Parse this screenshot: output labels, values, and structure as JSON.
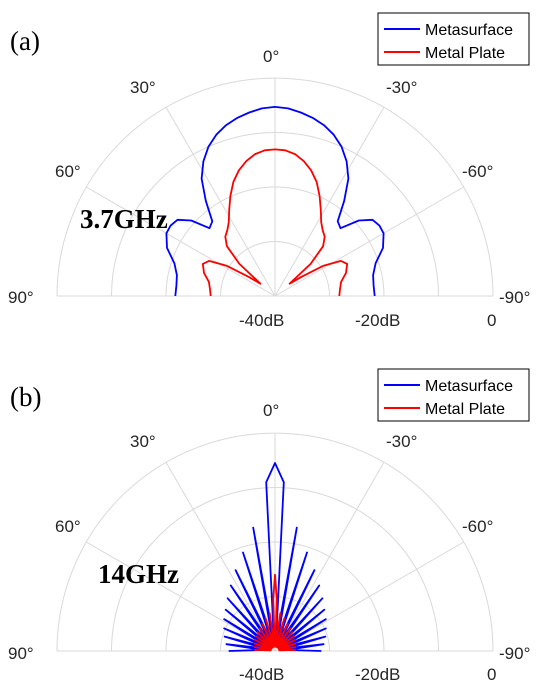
{
  "chart_data": [
    {
      "type": "polar-line",
      "panel_label": "(a)",
      "annotation": "3.7GHz",
      "legend": [
        "Metasurface",
        "Metal Plate"
      ],
      "angle_ticks": [
        "90°",
        "60°",
        "30°",
        "0°",
        "-30°",
        "-60°",
        "-90°"
      ],
      "radial_ticks": [
        "-40dB",
        "-20dB",
        "0"
      ],
      "radial_range_db": [
        -40,
        0
      ],
      "angle_range_deg": [
        -90,
        90
      ],
      "series": [
        {
          "name": "Metasurface",
          "color": "#0000ff",
          "angle_deg": [
            -90,
            -84,
            -78,
            -72,
            -66,
            -60,
            -56,
            -52,
            -48,
            -44,
            -40,
            -36,
            -32,
            -28,
            -24,
            -20,
            -16,
            -12,
            -8,
            -4,
            0,
            4,
            8,
            12,
            16,
            20,
            24,
            28,
            32,
            36,
            40,
            44,
            48,
            52,
            56,
            60,
            66,
            72,
            78,
            84,
            90
          ],
          "gain_db": [
            -21.7,
            -21.8,
            -21.6,
            -20.6,
            -18.3,
            -17.0,
            -16.9,
            -17.3,
            -19.3,
            -22.7,
            -22.1,
            -18.4,
            -14.6,
            -12.0,
            -10.0,
            -8.5,
            -7.4,
            -6.6,
            -6.0,
            -5.5,
            -5.3,
            -5.5,
            -6.0,
            -6.6,
            -7.4,
            -8.5,
            -10.0,
            -12.0,
            -14.6,
            -18.4,
            -22.1,
            -22.7,
            -19.3,
            -17.3,
            -16.9,
            -17.0,
            -18.3,
            -20.6,
            -21.6,
            -21.8,
            -21.7
          ]
        },
        {
          "name": "Metal Plate",
          "color": "#ff0000",
          "angle_deg": [
            -90,
            -84,
            -78,
            -72,
            -66,
            -62,
            -58,
            -54,
            -50,
            -48,
            -44,
            -40,
            -36,
            -32,
            -28,
            -24,
            -20,
            -16,
            -12,
            -8,
            -4,
            0,
            4,
            8,
            12,
            16,
            20,
            24,
            28,
            32,
            36,
            40,
            44,
            48,
            50,
            54,
            58,
            62,
            66,
            72,
            78,
            84,
            90
          ],
          "gain_db": [
            -28.2,
            -28.0,
            -27.6,
            -26.3,
            -25.5,
            -26.3,
            -29.5,
            -34.0,
            -36.5,
            -31.2,
            -27.3,
            -25.8,
            -25.1,
            -24.0,
            -22.1,
            -19.9,
            -17.7,
            -16.0,
            -14.7,
            -13.7,
            -13.2,
            -13.1,
            -13.2,
            -13.7,
            -14.7,
            -16.0,
            -17.7,
            -19.9,
            -22.1,
            -24.0,
            -25.1,
            -25.8,
            -27.3,
            -31.2,
            -36.5,
            -34.0,
            -29.5,
            -26.3,
            -25.5,
            -26.3,
            -27.6,
            -28.0,
            -28.2
          ]
        }
      ]
    },
    {
      "type": "polar-line",
      "panel_label": "(b)",
      "annotation": "14GHz",
      "legend": [
        "Metasurface",
        "Metal Plate"
      ],
      "angle_ticks": [
        "90°",
        "60°",
        "30°",
        "0°",
        "-30°",
        "-60°",
        "-90°"
      ],
      "radial_ticks": [
        "-40dB",
        "-20dB",
        "0"
      ],
      "radial_range_db": [
        -40,
        0
      ],
      "angle_range_deg": [
        -90,
        90
      ],
      "series": [
        {
          "name": "Metasurface",
          "color": "#0000ff",
          "angle_deg": [
            0,
            3,
            6,
            7,
            10,
            13,
            14,
            18,
            21,
            22,
            26,
            29,
            30,
            34,
            37,
            38,
            42,
            45,
            46,
            50,
            53,
            54,
            58,
            61,
            62,
            66,
            69,
            70,
            74,
            77,
            78,
            82,
            85,
            86,
            90
          ],
          "gain_db": [
            -5.5,
            -9.0,
            -38.0,
            -37.5,
            -17.0,
            -38.0,
            -37.5,
            -21.0,
            -38.0,
            -37.5,
            -23.5,
            -38.0,
            -37.5,
            -25.5,
            -38.0,
            -37.5,
            -27.0,
            -38.0,
            -37.5,
            -28.2,
            -38.0,
            -37.5,
            -29.0,
            -38.0,
            -37.5,
            -29.8,
            -38.0,
            -37.5,
            -30.4,
            -38.0,
            -37.5,
            -31.0,
            -38.0,
            -37.5,
            -31.5
          ]
        },
        {
          "name": "Metal Plate",
          "color": "#ff0000",
          "angle_deg": [
            0,
            2,
            3,
            5,
            8,
            11,
            12,
            16,
            19,
            20,
            25,
            28,
            29,
            34,
            37,
            38,
            43,
            46,
            47,
            52,
            55,
            56,
            61,
            64,
            65,
            70,
            73,
            74,
            79,
            82,
            83,
            87,
            90
          ],
          "gain_db": [
            -26.0,
            -30.5,
            -39.2,
            -39.0,
            -33.0,
            -39.2,
            -39.0,
            -33.8,
            -39.2,
            -39.0,
            -34.5,
            -39.2,
            -39.0,
            -35.0,
            -39.2,
            -39.0,
            -35.3,
            -39.2,
            -39.0,
            -35.6,
            -39.2,
            -39.0,
            -35.8,
            -39.2,
            -39.0,
            -36.0,
            -39.2,
            -39.0,
            -36.2,
            -39.2,
            -39.0,
            -36.3,
            -36.4
          ]
        }
      ]
    }
  ]
}
